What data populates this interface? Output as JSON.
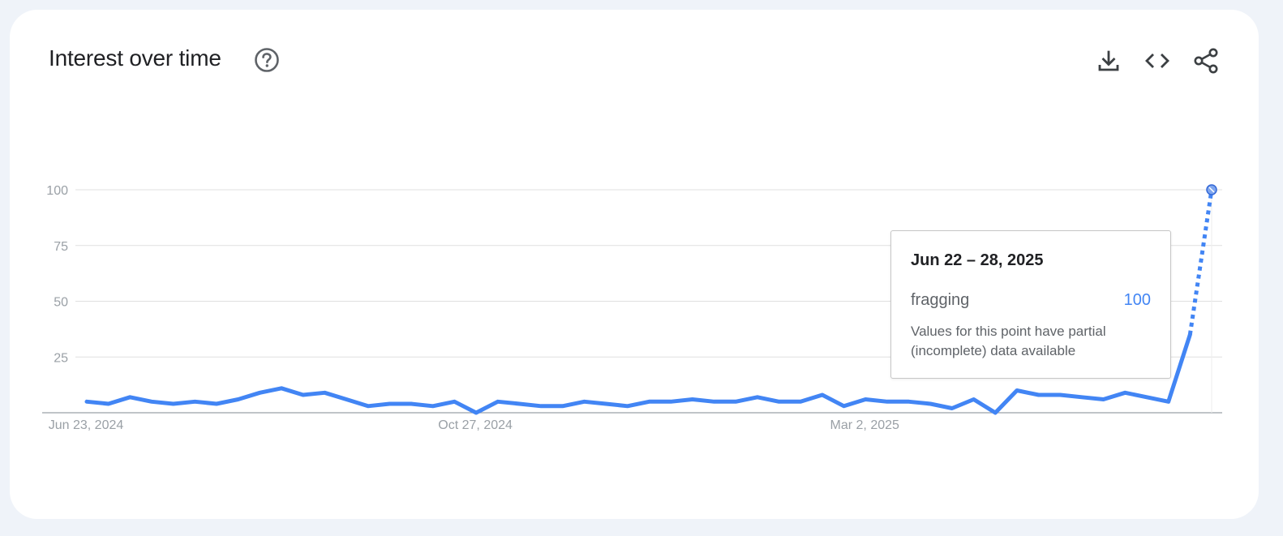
{
  "card": {
    "title": "Interest over time",
    "help_icon": "help-circle-icon",
    "toolbar": {
      "download_icon": "download-icon",
      "embed_icon": "embed-code-icon",
      "share_icon": "share-icon"
    }
  },
  "tooltip": {
    "date": "Jun 22 – 28, 2025",
    "term": "fragging",
    "value": "100",
    "note": "Values for this point have partial (incomplete) data available"
  },
  "colors": {
    "series": "#4285f4",
    "grid": "#e0e0e0",
    "axis": "#9aa0a6",
    "tick_text": "#9aa0a6"
  },
  "chart_data": {
    "type": "line",
    "title": "Interest over time",
    "xlabel": "",
    "ylabel": "",
    "ylim": [
      0,
      100
    ],
    "yticks": [
      25,
      50,
      75,
      100
    ],
    "x_tick_labels": [
      {
        "index": 0,
        "label": "Jun 23, 2024"
      },
      {
        "index": 18,
        "label": "Oct 27, 2024"
      },
      {
        "index": 36,
        "label": "Mar 2, 2025"
      }
    ],
    "grid": true,
    "partial_last_point": true,
    "series": [
      {
        "name": "fragging",
        "values": [
          5,
          4,
          7,
          5,
          4,
          5,
          4,
          6,
          9,
          11,
          8,
          9,
          6,
          3,
          4,
          4,
          3,
          5,
          0,
          5,
          4,
          3,
          3,
          5,
          4,
          3,
          5,
          5,
          6,
          5,
          5,
          7,
          5,
          5,
          8,
          3,
          6,
          5,
          5,
          4,
          2,
          6,
          0,
          10,
          8,
          8,
          7,
          6,
          9,
          7,
          5,
          35,
          100
        ]
      }
    ]
  }
}
